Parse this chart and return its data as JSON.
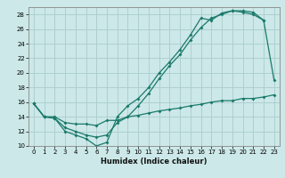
{
  "xlabel": "Humidex (Indice chaleur)",
  "bg_color": "#cce8e8",
  "grid_color": "#aacccc",
  "line_color": "#1a7a6a",
  "xlim": [
    -0.5,
    23.5
  ],
  "ylim": [
    10,
    29
  ],
  "x_ticks": [
    0,
    1,
    2,
    3,
    4,
    5,
    6,
    7,
    8,
    9,
    10,
    11,
    12,
    13,
    14,
    15,
    16,
    17,
    18,
    19,
    20,
    21,
    22,
    23
  ],
  "y_ticks": [
    10,
    12,
    14,
    16,
    18,
    20,
    22,
    24,
    26,
    28
  ],
  "line1": {
    "x": [
      0,
      1,
      2,
      3,
      4,
      5,
      6,
      7,
      8,
      9,
      10,
      11,
      12,
      13,
      14,
      15,
      16,
      17,
      18,
      19,
      20,
      21,
      22
    ],
    "y": [
      15.8,
      14.0,
      13.8,
      12.0,
      11.5,
      11.0,
      10.0,
      10.5,
      14.0,
      15.5,
      16.5,
      18.0,
      20.0,
      21.5,
      23.2,
      25.2,
      27.5,
      27.2,
      28.2,
      28.5,
      28.5,
      28.3,
      27.2
    ]
  },
  "line2": {
    "x": [
      0,
      1,
      2,
      3,
      4,
      5,
      6,
      7,
      8,
      9,
      10,
      11,
      12,
      13,
      14,
      15,
      16,
      17,
      18,
      19,
      20,
      21,
      22,
      23
    ],
    "y": [
      15.8,
      14.0,
      13.8,
      12.5,
      12.0,
      11.5,
      11.2,
      11.5,
      13.2,
      14.0,
      15.5,
      17.2,
      19.2,
      21.0,
      22.5,
      24.5,
      26.2,
      27.5,
      28.0,
      28.5,
      28.3,
      28.0,
      27.2,
      19.0
    ]
  },
  "line3": {
    "x": [
      0,
      1,
      2,
      3,
      4,
      5,
      6,
      7,
      8,
      9,
      10,
      11,
      12,
      13,
      14,
      15,
      16,
      17,
      18,
      19,
      20,
      21,
      22,
      23
    ],
    "y": [
      15.8,
      14.0,
      14.0,
      13.2,
      13.0,
      13.0,
      12.8,
      13.5,
      13.5,
      14.0,
      14.2,
      14.5,
      14.8,
      15.0,
      15.2,
      15.5,
      15.7,
      16.0,
      16.2,
      16.2,
      16.5,
      16.5,
      16.7,
      17.0
    ]
  }
}
